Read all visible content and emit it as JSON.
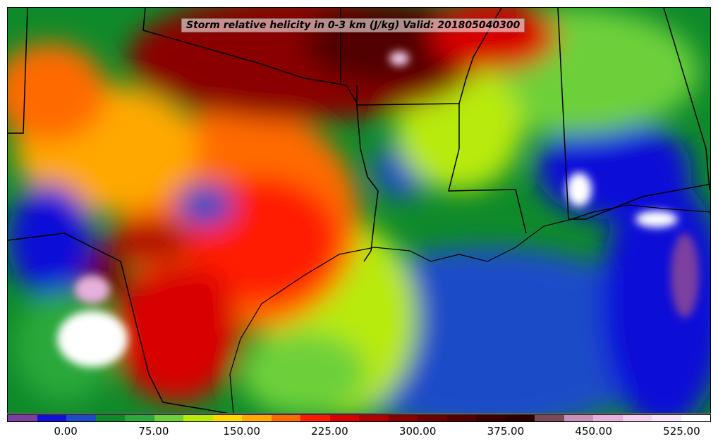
{
  "title": "Storm relative helicity in 0-3 km (J/kg) Valid: 201805040300",
  "colorbar": {
    "colors": [
      "#7b3f9f",
      "#1010d8",
      "#1e4bc8",
      "#0f8a2a",
      "#2aa83a",
      "#6dd03a",
      "#b8ea0a",
      "#ffd800",
      "#ffa800",
      "#ff6a00",
      "#ff1a00",
      "#d80000",
      "#b00000",
      "#8a0000",
      "#6a0000",
      "#520000",
      "#3d0000",
      "#2a0000",
      "#7a4a5a",
      "#c890b8",
      "#e6b0dc",
      "#f4d0ee",
      "#fbe6f8",
      "#ffffff"
    ],
    "tick_labels": [
      "0.00",
      "75.00",
      "150.00",
      "225.00",
      "300.00",
      "375.00",
      "450.00",
      "525.00"
    ]
  }
}
